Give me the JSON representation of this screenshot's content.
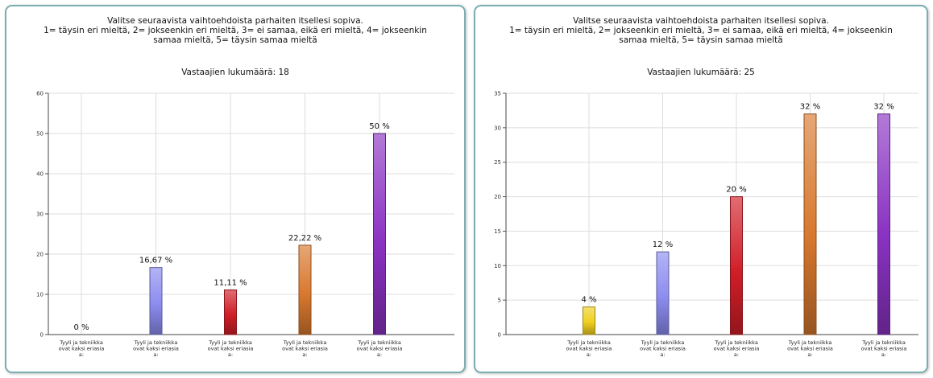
{
  "charts": [
    {
      "title_lines": [
        "Valitse seuraavista vaihtoehdoista parhaiten itsellesi sopiva.",
        "1= täysin eri mieltä, 2= jokseenkin eri mieltä, 3= ei samaa, eikä eri mieltä, 4= jokseenkin",
        "samaa mieltä, 5= täysin samaa mieltä"
      ],
      "respondents": "Vastaajien lukumäärä: 18"
    },
    {
      "title_lines": [
        "Valitse seuraavista vaihtoehdoista parhaiten itsellesi sopiva.",
        "1= täysin eri mieltä, 2= jokseenkin eri mieltä, 3= ei samaa, eikä eri mieltä, 4= jokseenkin",
        "samaa mieltä, 5= täysin samaa mieltä"
      ],
      "respondents": "Vastaajien lukumäärä: 25"
    }
  ],
  "colors": {
    "bar_1": "#f0d020",
    "bar_2": "#8c8cf0",
    "bar_3": "#d01e28",
    "bar_4": "#d8782e",
    "bar_5": "#8a32c2",
    "border": "#7aaeb0",
    "grid": "#dddddd"
  },
  "chart_data": [
    {
      "type": "bar",
      "categories": [
        "Tyyli ja tekniikka ovat kaksi eriasia a:",
        "Tyyli ja tekniikka ovat kaksi eriasia a:",
        "Tyyli ja tekniikka ovat kaksi eriasia a:",
        "Tyyli ja tekniikka ovat kaksi eriasia a:",
        "Tyyli ja tekniikka ovat kaksi eriasia a:"
      ],
      "category_lines": [
        "Tyyli ja tekniikka",
        "ovat kaksi eriasia",
        "a:"
      ],
      "values": [
        0,
        16.67,
        11.11,
        22.22,
        50
      ],
      "data_labels": [
        "0 %",
        "16,67 %",
        "11,11 %",
        "22,22 %",
        "50 %"
      ],
      "ylim": [
        0,
        60
      ],
      "yticks": [
        0,
        10,
        20,
        30,
        40,
        50,
        60
      ],
      "grid": true
    },
    {
      "type": "bar",
      "categories": [
        "Tyyli ja tekniikka ovat kaksi eriasia a:",
        "Tyyli ja tekniikka ovat kaksi eriasia a:",
        "Tyyli ja tekniikka ovat kaksi eriasia a:",
        "Tyyli ja tekniikka ovat kaksi eriasia a:",
        "Tyyli ja tekniikka ovat kaksi eriasia a:"
      ],
      "category_lines": [
        "Tyyli ja tekniikka",
        "ovat kaksi eriasia",
        "a:"
      ],
      "values": [
        4,
        12,
        20,
        32,
        32
      ],
      "data_labels": [
        "4 %",
        "12 %",
        "20 %",
        "32 %",
        "32 %"
      ],
      "ylim": [
        0,
        35
      ],
      "yticks": [
        0,
        5,
        10,
        15,
        20,
        25,
        30,
        35
      ],
      "grid": true
    }
  ]
}
